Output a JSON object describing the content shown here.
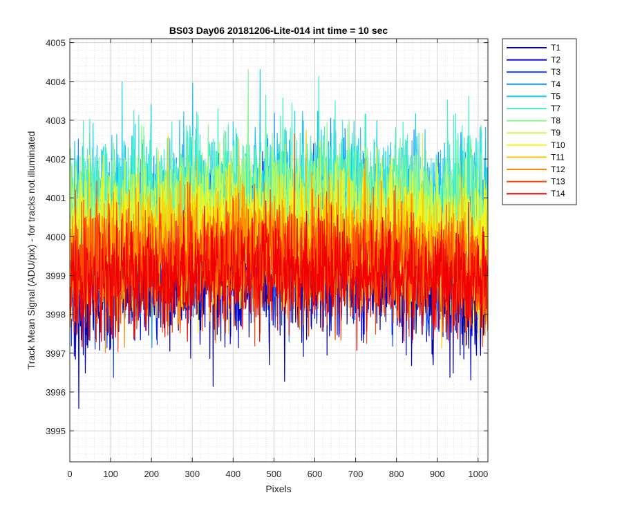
{
  "chart_data": {
    "type": "line",
    "title": "BS03 Day06 20181206-Lite-014 int time = 10 sec",
    "xlabel": "Pixels",
    "ylabel": "Track Mean Signal (ADU/pix) - for tracks not illuminated",
    "xlim": [
      0,
      1024
    ],
    "ylim": [
      3994.2,
      4005.1
    ],
    "xticks": [
      0,
      100,
      200,
      300,
      400,
      500,
      600,
      700,
      800,
      900,
      1000
    ],
    "yticks": [
      3995,
      3996,
      3997,
      3998,
      3999,
      4000,
      4001,
      4002,
      4003,
      4004,
      4005
    ],
    "grid": true,
    "minor_grid": true,
    "legend_position": "outside-top-right",
    "series": [
      {
        "name": "T1",
        "color": "#00009e",
        "offset": -0.35,
        "noise": 0.85
      },
      {
        "name": "T2",
        "color": "#0000d6",
        "offset": -0.25,
        "noise": 0.8
      },
      {
        "name": "T3",
        "color": "#0a3cff",
        "offset": 0.4,
        "noise": 0.85
      },
      {
        "name": "T4",
        "color": "#0a8cff",
        "offset": 1.0,
        "noise": 0.95
      },
      {
        "name": "T5",
        "color": "#1ac8f5",
        "offset": 1.6,
        "noise": 0.9
      },
      {
        "name": "T7",
        "color": "#45f0c8",
        "offset": 1.85,
        "noise": 0.85
      },
      {
        "name": "T8",
        "color": "#8cf590",
        "offset": 1.4,
        "noise": 0.8
      },
      {
        "name": "T9",
        "color": "#c8fa50",
        "offset": 1.0,
        "noise": 0.8
      },
      {
        "name": "T10",
        "color": "#f5f51a",
        "offset": 0.75,
        "noise": 0.8
      },
      {
        "name": "T11",
        "color": "#ffc800",
        "offset": 0.4,
        "noise": 0.8
      },
      {
        "name": "T12",
        "color": "#ff8c00",
        "offset": 0.15,
        "noise": 0.75
      },
      {
        "name": "T13",
        "color": "#ff4600",
        "offset": -0.05,
        "noise": 0.75
      },
      {
        "name": "T14",
        "color": "#f00000",
        "offset": -0.3,
        "noise": 0.7
      }
    ],
    "baseline": 3999.0,
    "n_points": 1024
  }
}
